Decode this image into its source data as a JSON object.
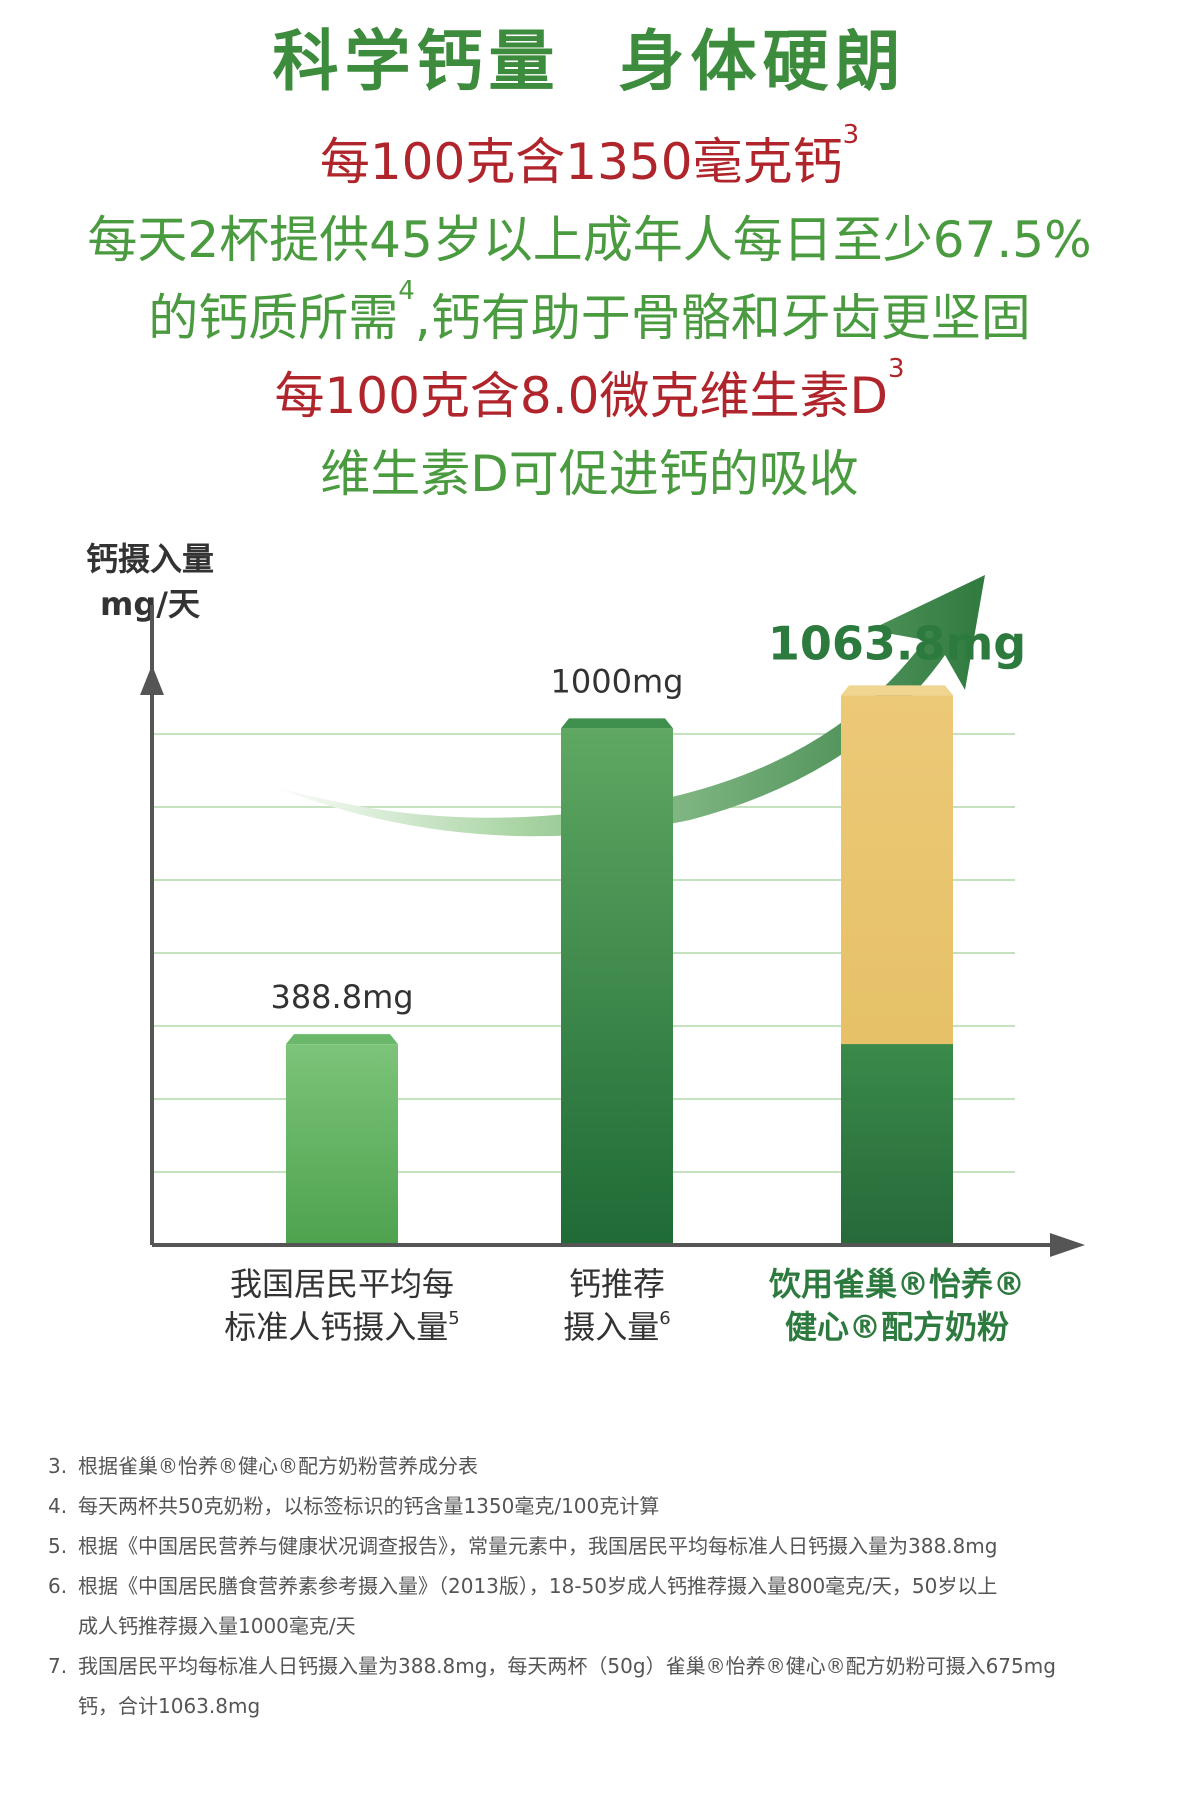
{
  "headline": "科学钙量  身体硬朗",
  "claims": {
    "line1": {
      "text": "每100克含1350毫克钙",
      "sup": "3"
    },
    "line2": "每天2杯提供45岁以上成年人每日至少67.5%",
    "line3": {
      "before": "的钙质所需",
      "sup": "4",
      "after": ",钙有助于骨骼和牙齿更坚固"
    },
    "line4": {
      "text": "每100克含8.0微克维生素D",
      "sup": "3"
    },
    "line5": "维生素D可促进钙的吸收"
  },
  "colors": {
    "headline": "#3d8b3c",
    "red": "#b0252b",
    "green_text": "#4a9a3f",
    "grid": "#b8dcb0",
    "axis": "#555555",
    "bar_light_top": "#7cc47a",
    "bar_light_bottom": "#4ea24e",
    "bar_dark_top": "#5ea862",
    "bar_dark_bottom": "#1f6a36",
    "bar_gold": "#e9c46a",
    "bar_base": "#2d7a3f"
  },
  "chart_data": {
    "type": "bar",
    "ylabel_line1": "钙摄入量",
    "ylabel_line2": "mg/天",
    "ylim": [
      0,
      1200
    ],
    "grid": true,
    "categories": [
      {
        "line1": "我国居民平均每",
        "line2": "标准人钙摄入量",
        "sup": "5",
        "bold": false
      },
      {
        "line1": "钙推荐",
        "line2": "摄入量",
        "sup": "6",
        "bold": false
      },
      {
        "line1": "饮用雀巢®怡养®",
        "line2": "健心®配方奶粉",
        "sup": "",
        "bold": true
      }
    ],
    "values": [
      388.8,
      1000,
      1063.8
    ],
    "stacked_base": 388.8,
    "value_labels": [
      "388.8mg",
      "1000mg",
      "1063.8mg"
    ]
  },
  "footnotes": [
    {
      "num": "3.",
      "text": "根据雀巢®怡养®健心®配方奶粉营养成分表"
    },
    {
      "num": "4.",
      "text": "每天两杯共50克奶粉，以标签标识的钙含量1350毫克/100克计算"
    },
    {
      "num": "5.",
      "text": "根据《中国居民营养与健康状况调查报告》，常量元素中，我国居民平均每标准人日钙摄入量为388.8mg"
    },
    {
      "num": "6.",
      "text": "根据《中国居民膳食营养素参考摄入量》（2013版），18-50岁成人钙推荐摄入量800毫克/天，50岁以上",
      "cont": "成人钙推荐摄入量1000毫克/天"
    },
    {
      "num": "7.",
      "text": "我国居民平均每标准人日钙摄入量为388.8mg，每天两杯（50g）雀巢®怡养®健心®配方奶粉可摄入675mg",
      "cont": "钙，合计1063.8mg"
    }
  ]
}
